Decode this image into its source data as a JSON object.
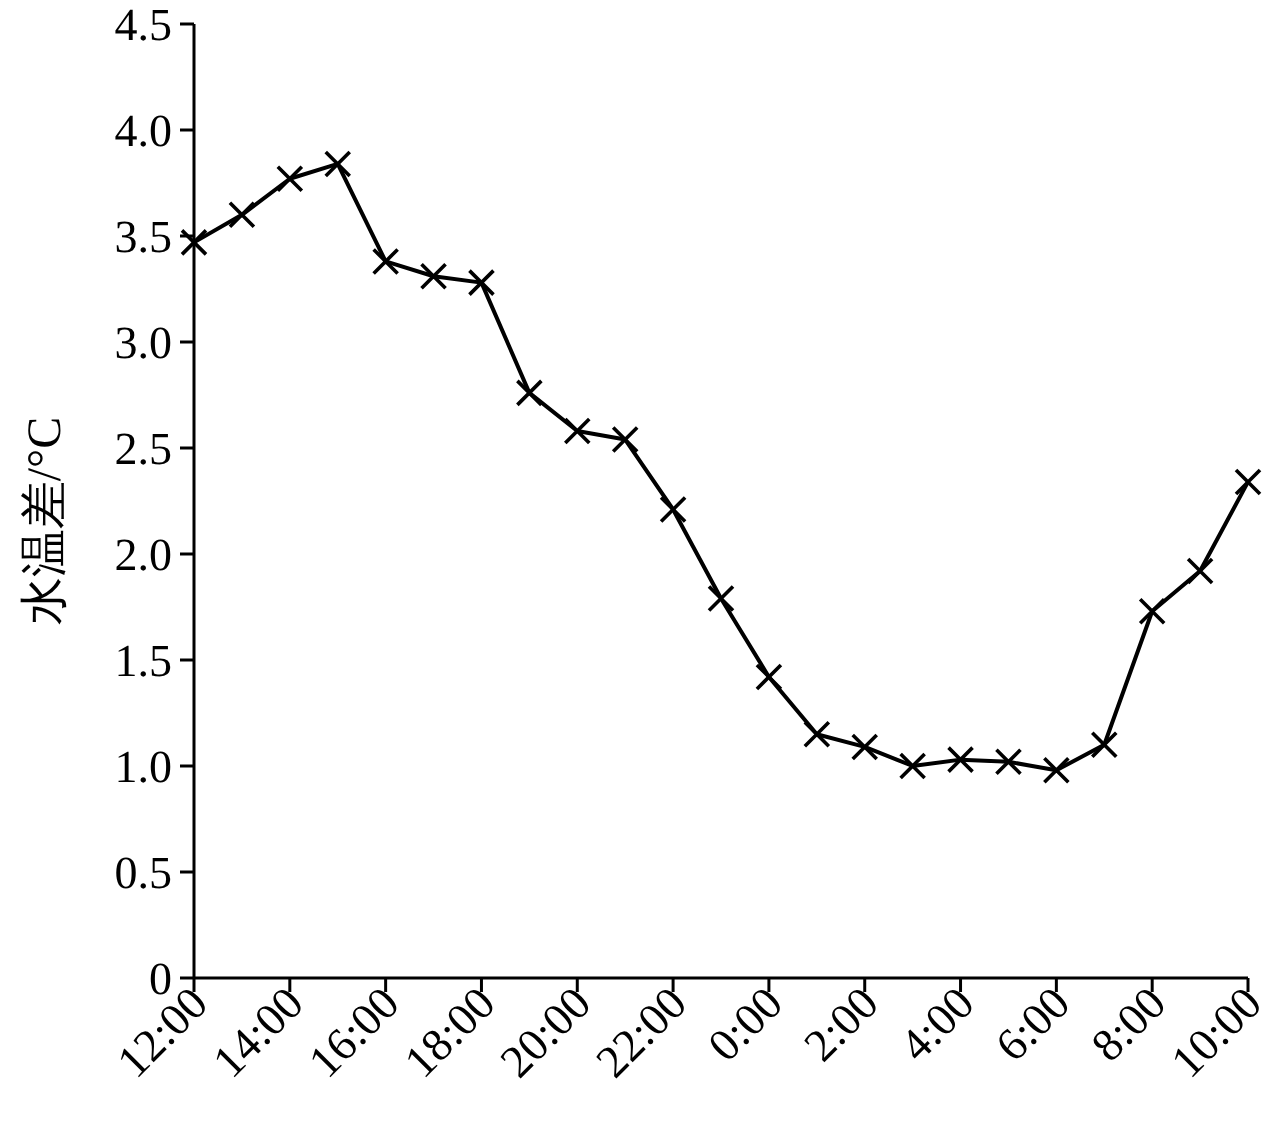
{
  "chart_data": {
    "type": "line",
    "ylabel": "水温差/°C",
    "marker": "cross",
    "line_style": "solid",
    "categories": [
      "12:00",
      null,
      "14:00",
      null,
      "16:00",
      null,
      "18:00",
      null,
      "20:00",
      null,
      "22:00",
      null,
      "0:00",
      null,
      "2:00",
      null,
      "4:00",
      null,
      "6:00",
      null,
      "8:00",
      null,
      "10:00"
    ],
    "series": [
      {
        "color": "#000000",
        "values": [
          3.47,
          3.6,
          3.77,
          3.84,
          3.38,
          3.31,
          3.28,
          2.76,
          2.58,
          2.54,
          2.21,
          1.79,
          1.42,
          1.15,
          1.09,
          1.0,
          1.03,
          1.02,
          0.98,
          1.1,
          1.73,
          1.92,
          2.34
        ]
      }
    ],
    "ylim": [
      0,
      4.5
    ],
    "yticks": [
      {
        "value": 0,
        "label": "0"
      },
      {
        "value": 0.5,
        "label": "0.5"
      },
      {
        "value": 1,
        "label": "1.0"
      },
      {
        "value": 1.5,
        "label": "1.5"
      },
      {
        "value": 2,
        "label": "2.0"
      },
      {
        "value": 2.5,
        "label": "2.5"
      },
      {
        "value": 3,
        "label": "3.0"
      },
      {
        "value": 3.5,
        "label": "3.5"
      },
      {
        "value": 4,
        "label": "4.0"
      },
      {
        "value": 4.5,
        "label": "4.5"
      }
    ]
  }
}
